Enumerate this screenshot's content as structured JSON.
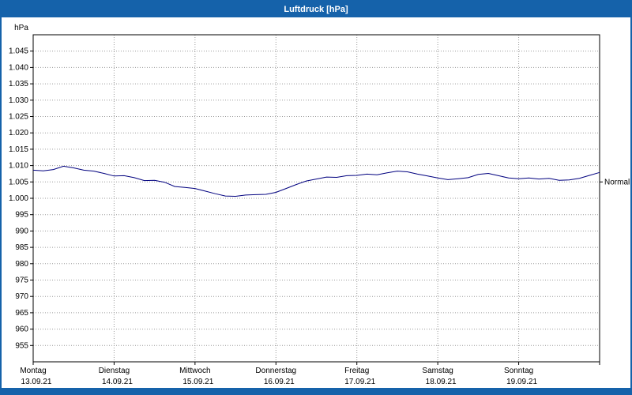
{
  "window": {
    "title": "Luftdruck [hPa]"
  },
  "chart_data": {
    "type": "line",
    "title": "Luftdruck [hPa]",
    "y_unit_label": "hPa",
    "ylim": [
      950,
      1050
    ],
    "ytick_step": 5,
    "ytick_labels": [
      "1.045",
      "1.040",
      "1.035",
      "1.030",
      "1.025",
      "1.020",
      "1.015",
      "1.010",
      "1.005",
      "1.000",
      "995",
      "990",
      "985",
      "980",
      "975",
      "970",
      "965",
      "960",
      "955"
    ],
    "grid": "dotted",
    "grid_color": "#9a9a9a",
    "line_color": "#00007f",
    "normal_marker": {
      "label": "Normal",
      "value": 1005
    },
    "x_days": [
      {
        "name": "Montag",
        "date": "13.09.21"
      },
      {
        "name": "Dienstag",
        "date": "14.09.21"
      },
      {
        "name": "Mittwoch",
        "date": "15.09.21"
      },
      {
        "name": "Donnerstag",
        "date": "16.09.21"
      },
      {
        "name": "Freitag",
        "date": "17.09.21"
      },
      {
        "name": "Samstag",
        "date": "18.09.21"
      },
      {
        "name": "Sonntag",
        "date": "19.09.21"
      }
    ],
    "x_start_day": 0,
    "x_step_days": 0.125,
    "series": [
      {
        "name": "Luftdruck",
        "values": [
          1008.6,
          1008.4,
          1008.8,
          1009.8,
          1009.3,
          1008.6,
          1008.3,
          1007.6,
          1006.8,
          1006.9,
          1006.3,
          1005.4,
          1005.5,
          1004.9,
          1003.6,
          1003.3,
          1003.0,
          1002.2,
          1001.4,
          1000.7,
          1000.6,
          1001.0,
          1001.1,
          1001.2,
          1001.8,
          1003.0,
          1004.2,
          1005.3,
          1005.9,
          1006.5,
          1006.4,
          1006.9,
          1007.0,
          1007.4,
          1007.2,
          1007.8,
          1008.3,
          1008.1,
          1007.4,
          1006.8,
          1006.2,
          1005.7,
          1006.0,
          1006.3,
          1007.3,
          1007.6,
          1006.9,
          1006.2,
          1006.0,
          1006.2,
          1005.9,
          1006.1,
          1005.5,
          1005.6,
          1006.1,
          1007.0,
          1007.9
        ]
      }
    ]
  }
}
